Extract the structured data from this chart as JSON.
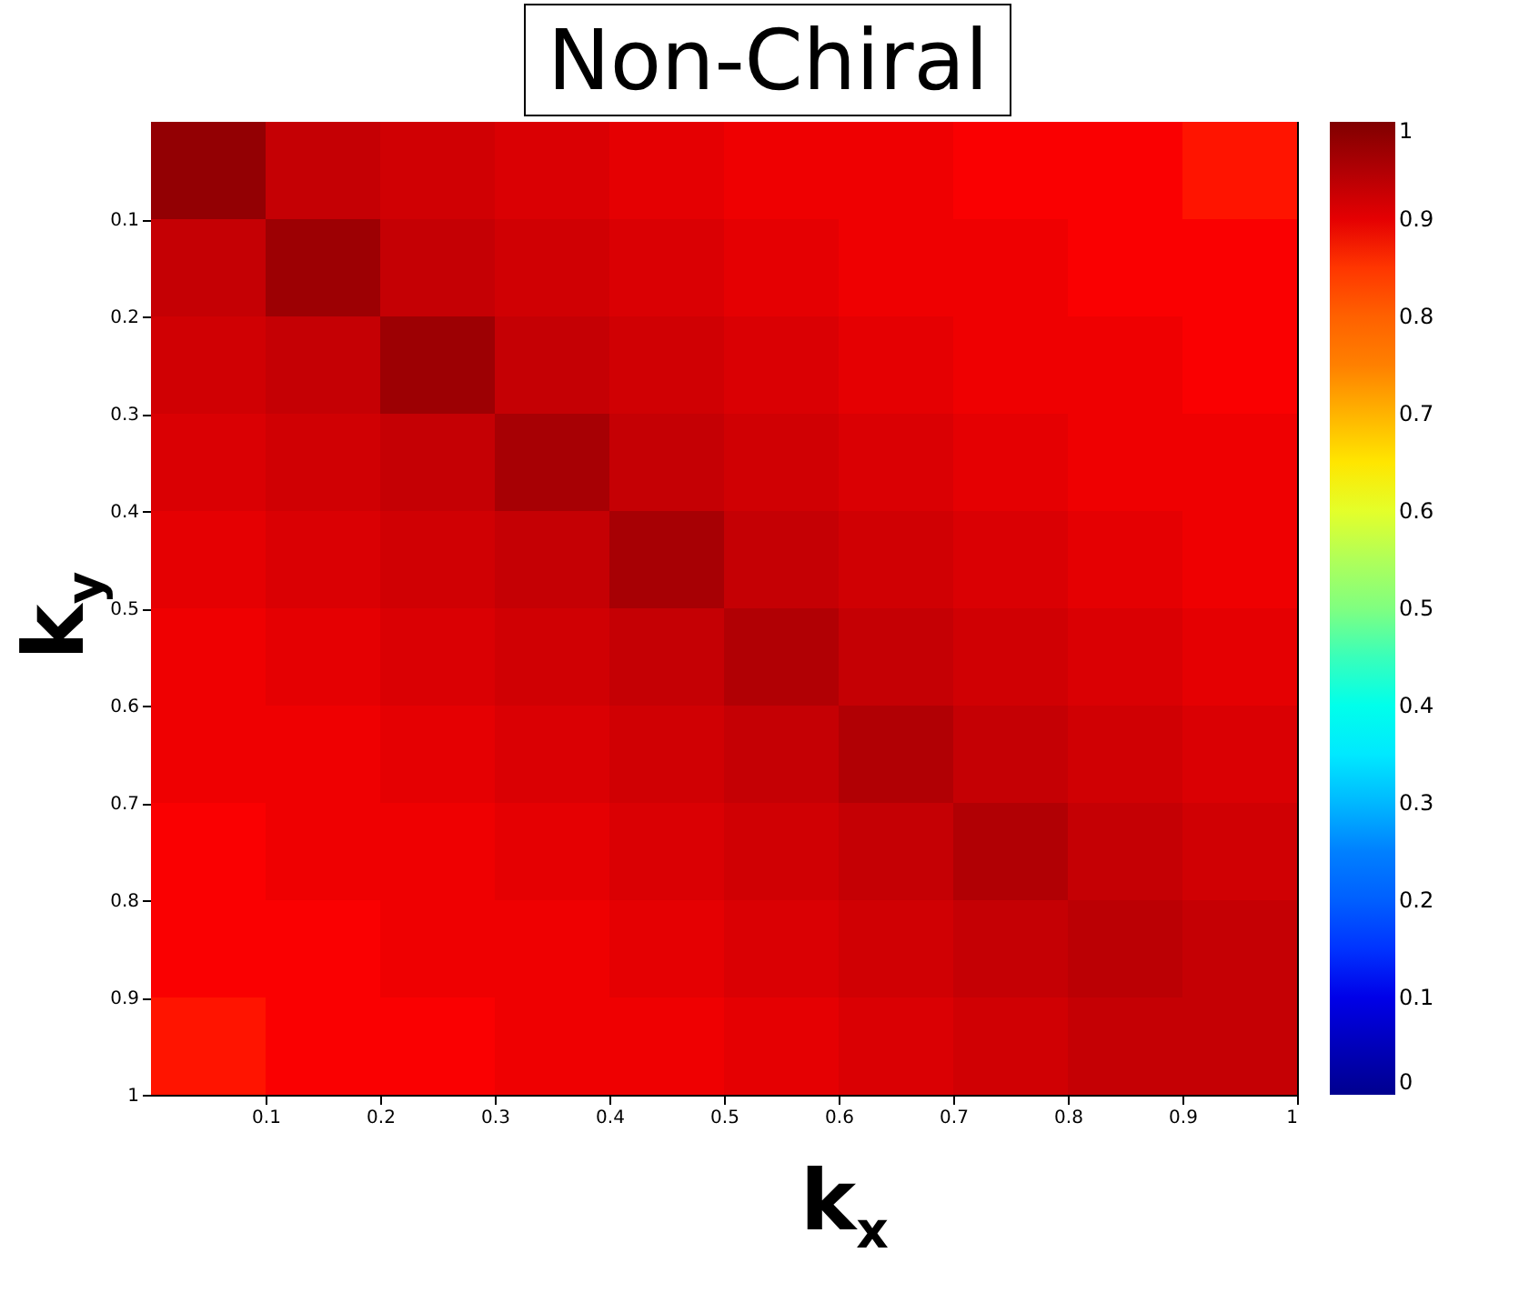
{
  "chart_data": {
    "type": "heatmap",
    "title": "Non-Chiral",
    "xlabel": "k$_{x}$",
    "ylabel": "k$_{y}$",
    "x": [
      0.05,
      0.15,
      0.25,
      0.35,
      0.45,
      0.55,
      0.65,
      0.75,
      0.85,
      0.95
    ],
    "y": [
      0.05,
      0.15,
      0.25,
      0.35,
      0.45,
      0.55,
      0.65,
      0.75,
      0.85,
      0.95
    ],
    "cells": [
      [
        0.98,
        0.93,
        0.92,
        0.91,
        0.9,
        0.89,
        0.89,
        0.88,
        0.88,
        0.87
      ],
      [
        0.93,
        0.97,
        0.93,
        0.92,
        0.91,
        0.9,
        0.89,
        0.89,
        0.88,
        0.88
      ],
      [
        0.92,
        0.93,
        0.97,
        0.93,
        0.92,
        0.91,
        0.9,
        0.89,
        0.89,
        0.88
      ],
      [
        0.91,
        0.92,
        0.93,
        0.96,
        0.93,
        0.92,
        0.91,
        0.9,
        0.89,
        0.89
      ],
      [
        0.9,
        0.91,
        0.92,
        0.93,
        0.96,
        0.93,
        0.92,
        0.91,
        0.9,
        0.89
      ],
      [
        0.89,
        0.9,
        0.91,
        0.92,
        0.93,
        0.95,
        0.93,
        0.92,
        0.91,
        0.9
      ],
      [
        0.89,
        0.89,
        0.9,
        0.91,
        0.92,
        0.93,
        0.95,
        0.93,
        0.92,
        0.91
      ],
      [
        0.88,
        0.89,
        0.89,
        0.9,
        0.91,
        0.92,
        0.93,
        0.95,
        0.93,
        0.92
      ],
      [
        0.88,
        0.88,
        0.89,
        0.89,
        0.9,
        0.91,
        0.92,
        0.93,
        0.94,
        0.93
      ],
      [
        0.87,
        0.88,
        0.88,
        0.89,
        0.89,
        0.9,
        0.91,
        0.92,
        0.93,
        0.93
      ]
    ],
    "colors": [
      "#00008f",
      "#0000ff",
      "#0080ff",
      "#00ffff",
      "#80ff80",
      "#ffff00",
      "#ff8000",
      "#ff0000",
      "#800000"
    ],
    "xlim": [
      0,
      1
    ],
    "ylim": [
      1,
      0
    ],
    "xticks": [
      0.1,
      0.2,
      0.3,
      0.4,
      0.5,
      0.6,
      0.7,
      0.8,
      0.9,
      1
    ],
    "yticks": [
      0.1,
      0.2,
      0.3,
      0.4,
      0.5,
      0.6,
      0.7,
      0.8,
      0.9,
      1
    ],
    "clim": [
      0,
      1
    ],
    "cticks": [
      0,
      0.1,
      0.2,
      0.3,
      0.4,
      0.5,
      0.6,
      0.7,
      0.8,
      0.9,
      1
    ]
  }
}
